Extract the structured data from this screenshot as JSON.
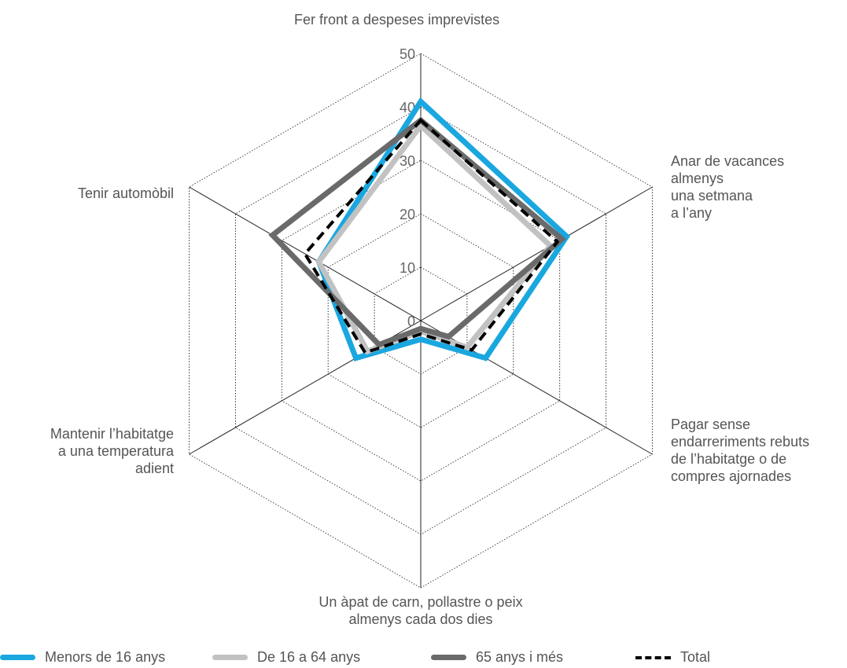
{
  "chart_data": {
    "type": "radar",
    "axes": [
      "Fer front a despeses imprevistes",
      "Anar de vacances\nalmenys\nuna setmana\na l’any",
      "Pagar sense\nendarreriments rebuts\nde l’habitatge o de\ncompres ajornades",
      "Un àpat de carn, pollastre o peix\nalmenys cada dos dies",
      "Mantenir l’habitatge\na una temperatura\nadient",
      "Tenir automòbil"
    ],
    "ticks": [
      "0",
      "10",
      "20",
      "30",
      "40",
      "50"
    ],
    "rmax": 50,
    "series": [
      {
        "name": "Menors de 16 anys",
        "values": [
          41.0,
          31.5,
          14.0,
          3.5,
          14.0,
          22.0
        ],
        "color": "#1aa7e0",
        "style": "solid"
      },
      {
        "name": "De 16 a 64 anys",
        "values": [
          36.5,
          28.0,
          10.0,
          2.0,
          11.5,
          22.0
        ],
        "color": "#c2c2c2",
        "style": "solid"
      },
      {
        "name": "65 anys i més",
        "values": [
          37.5,
          30.5,
          6.0,
          1.5,
          9.0,
          32.0
        ],
        "color": "#6a6a6a",
        "style": "solid"
      },
      {
        "name": "Total",
        "values": [
          37.5,
          29.5,
          11.0,
          2.5,
          12.0,
          25.0
        ],
        "color": "#000000",
        "style": "dashed"
      }
    ]
  },
  "legend": {
    "items": [
      "Menors de 16 anys",
      "De 16 a 64 anys",
      "65 anys i més",
      "Total"
    ]
  }
}
